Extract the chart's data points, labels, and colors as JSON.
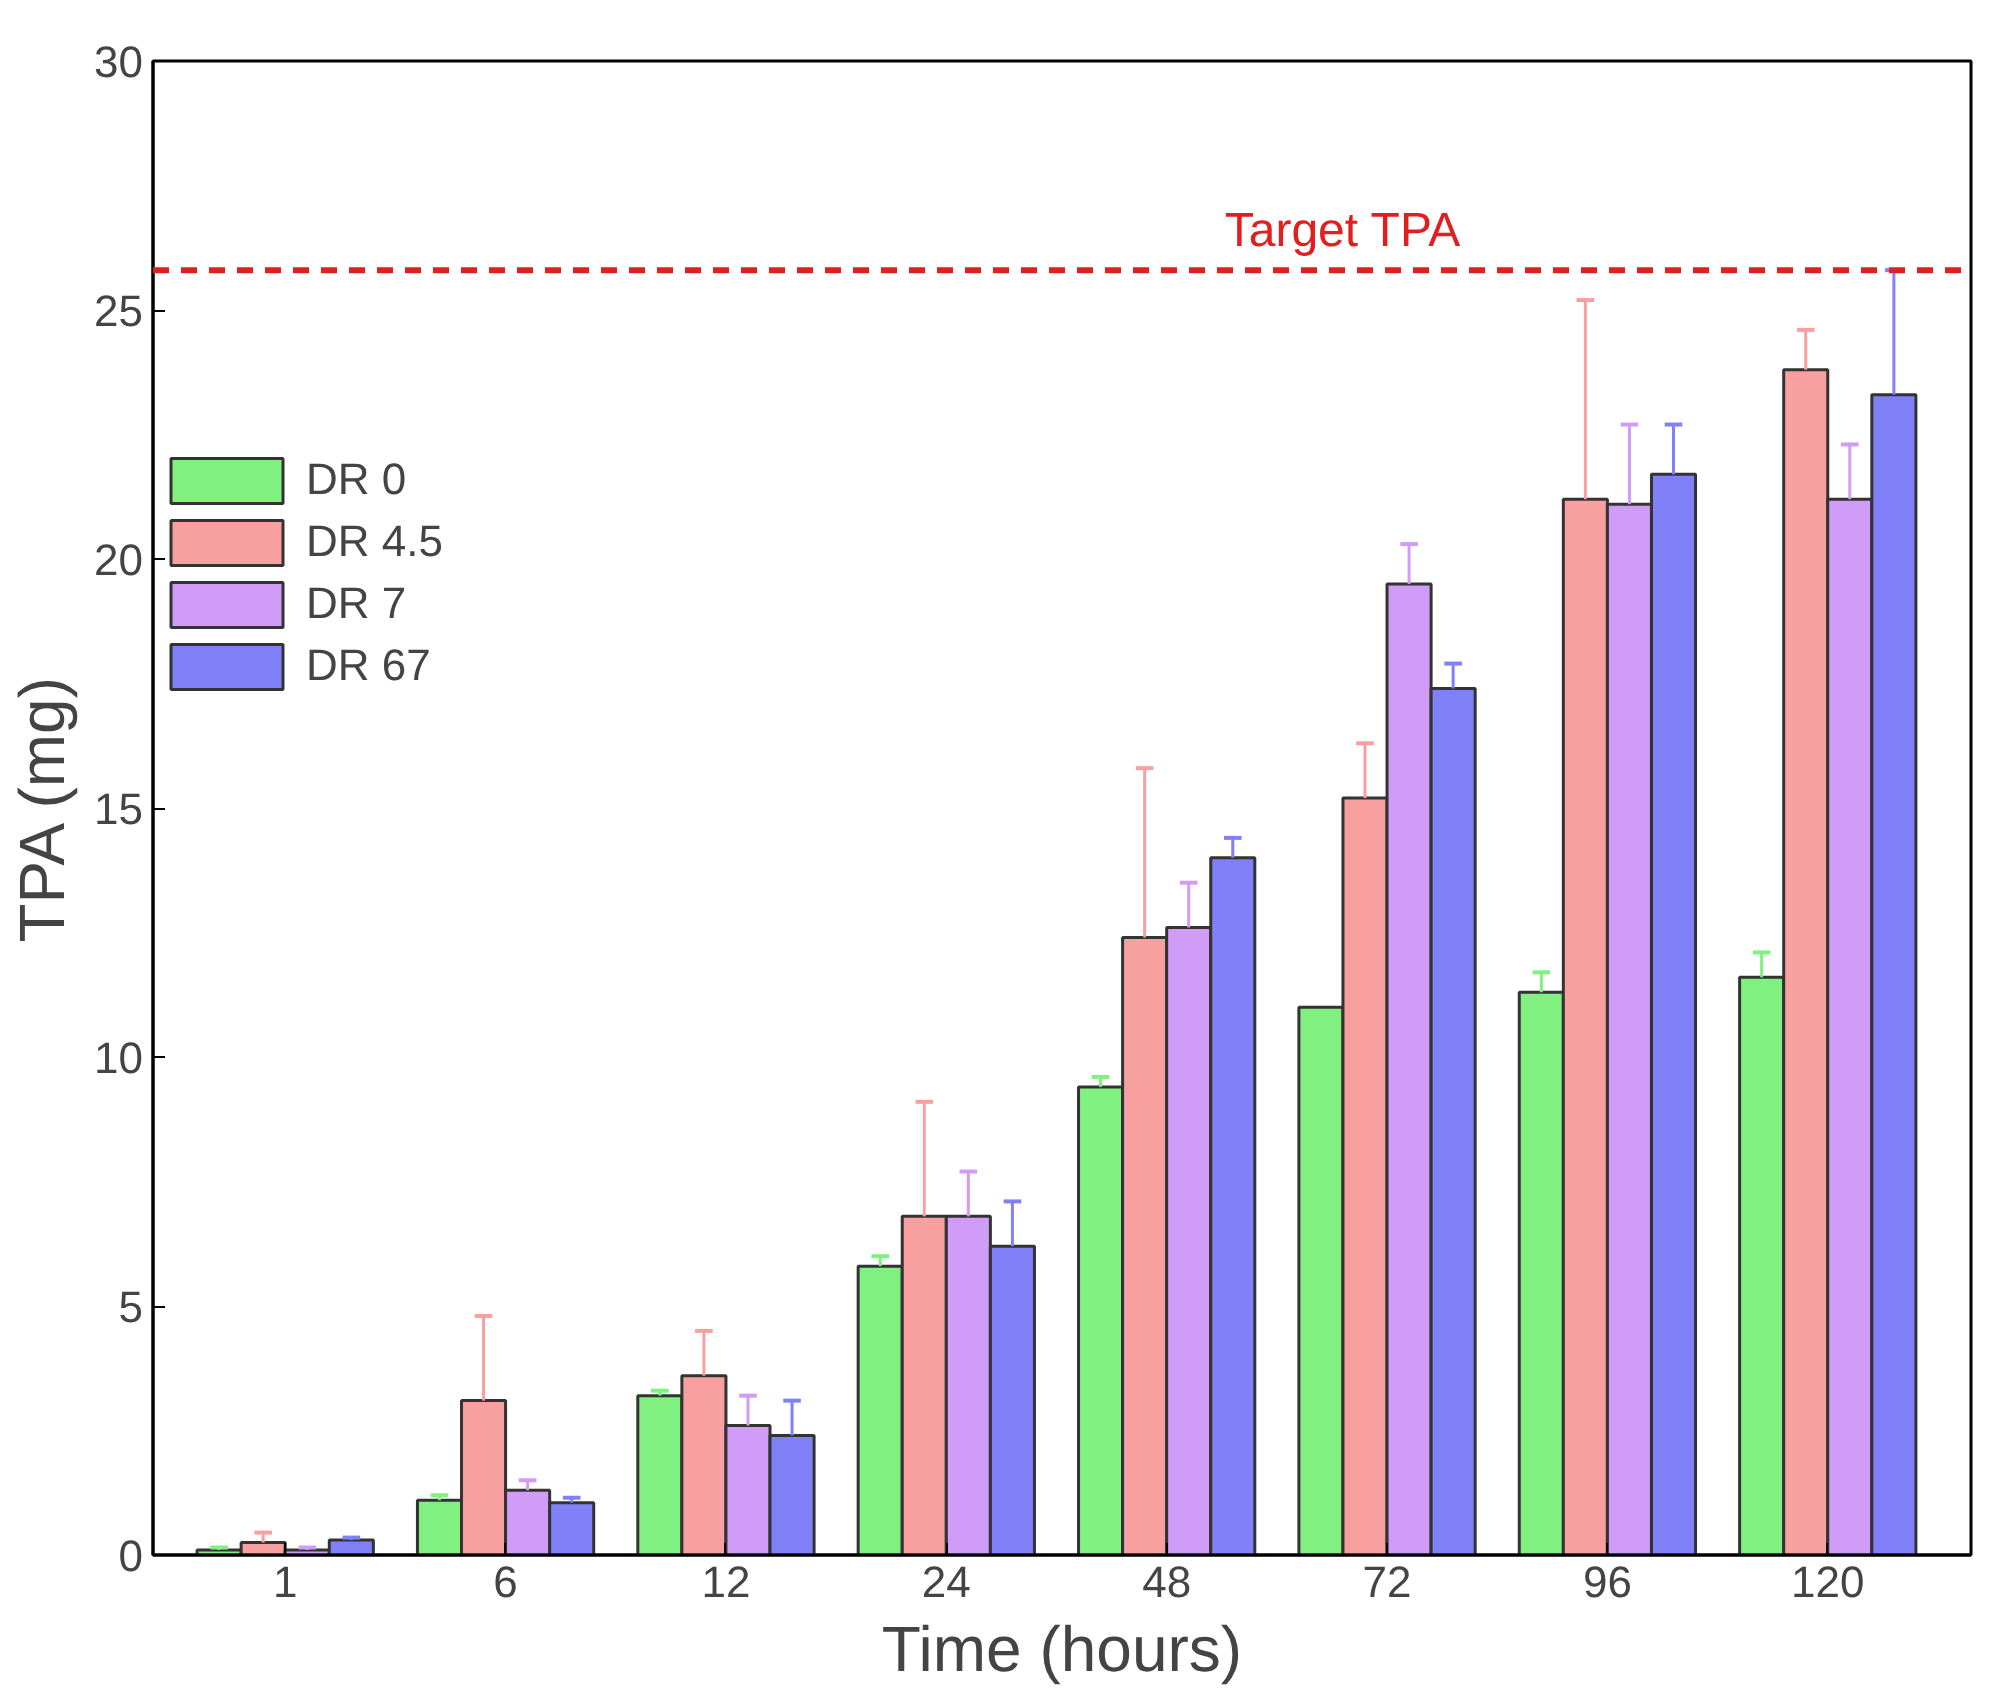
{
  "chart_data": {
    "type": "bar",
    "xlabel": "Time (hours)",
    "ylabel": "TPA (mg)",
    "categories": [
      "1",
      "6",
      "12",
      "24",
      "48",
      "72",
      "96",
      "120"
    ],
    "series": [
      {
        "name": "DR 0",
        "color": "#80f080",
        "values": [
          0.1,
          1.1,
          3.2,
          5.8,
          9.4,
          11.0,
          11.3,
          11.6
        ],
        "errors": [
          [
            0.1,
            0.15
          ],
          [
            1.1,
            1.2
          ],
          [
            3.2,
            3.3
          ],
          [
            5.8,
            6.0
          ],
          [
            9.4,
            9.6
          ],
          null,
          [
            11.3,
            11.7
          ],
          [
            11.6,
            12.1
          ]
        ]
      },
      {
        "name": "DR 4.5",
        "color": "#f8a0a0",
        "values": [
          0.25,
          3.1,
          3.6,
          6.8,
          12.4,
          15.2,
          21.2,
          23.8
        ],
        "errors": [
          [
            0.25,
            0.45
          ],
          [
            3.1,
            4.8
          ],
          [
            3.6,
            4.5
          ],
          [
            6.8,
            9.1
          ],
          [
            12.4,
            15.8
          ],
          [
            15.2,
            16.3
          ],
          [
            21.2,
            25.2
          ],
          [
            23.8,
            24.6
          ]
        ]
      },
      {
        "name": "DR 7",
        "color": "#d09cf8",
        "values": [
          0.1,
          1.3,
          2.6,
          6.8,
          12.6,
          19.5,
          21.1,
          21.2
        ],
        "errors": [
          [
            0.1,
            0.15
          ],
          [
            1.3,
            1.5
          ],
          [
            2.6,
            3.2
          ],
          [
            6.8,
            7.7
          ],
          [
            12.6,
            13.5
          ],
          [
            19.5,
            20.3
          ],
          [
            21.1,
            22.7
          ],
          [
            21.2,
            22.3
          ]
        ]
      },
      {
        "name": "DR 67",
        "color": "#8080f8",
        "values": [
          0.3,
          1.05,
          2.4,
          6.2,
          14.0,
          17.4,
          21.7,
          23.3
        ],
        "errors": [
          [
            0.3,
            0.35
          ],
          [
            1.05,
            1.15
          ],
          [
            2.4,
            3.1
          ],
          [
            6.2,
            7.1
          ],
          [
            14.0,
            14.4
          ],
          [
            17.4,
            17.9
          ],
          [
            21.7,
            22.7
          ],
          [
            23.3,
            25.8
          ]
        ]
      }
    ],
    "ylim": [
      0,
      30
    ],
    "yticks": [
      0,
      5,
      10,
      15,
      20,
      25,
      30
    ],
    "ref_lines": [
      {
        "axis": "y",
        "value": 25.8,
        "label": "Target TPA",
        "color": "#e02020",
        "line_style": "dashed"
      }
    ],
    "legend": "top left",
    "grid": false
  }
}
